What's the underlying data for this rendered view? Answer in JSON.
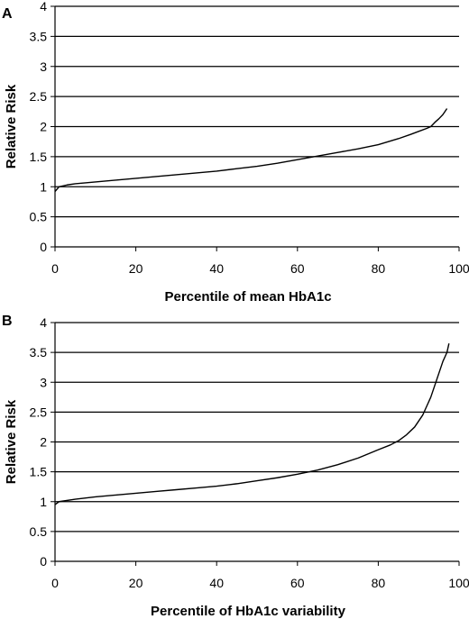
{
  "chart_data": [
    {
      "type": "line",
      "panel_label": "A",
      "xlabel": "Percentile of mean HbA1c",
      "ylabel": "Relative Risk",
      "xlim": [
        0,
        100
      ],
      "ylim": [
        0,
        4
      ],
      "x_ticks": [
        "0",
        "20",
        "40",
        "60",
        "80",
        "100"
      ],
      "y_ticks": [
        "0",
        "0.5",
        "1",
        "1.5",
        "2",
        "2.5",
        "3",
        "3.5",
        "4"
      ],
      "grid": "horizontal",
      "x": [
        0,
        1,
        3,
        5,
        10,
        15,
        20,
        25,
        30,
        35,
        40,
        45,
        50,
        55,
        60,
        65,
        70,
        75,
        80,
        85,
        88,
        90,
        92,
        93,
        94,
        95,
        96,
        97
      ],
      "y": [
        0.92,
        1.0,
        1.03,
        1.05,
        1.08,
        1.11,
        1.14,
        1.17,
        1.2,
        1.23,
        1.26,
        1.3,
        1.34,
        1.39,
        1.45,
        1.51,
        1.57,
        1.63,
        1.7,
        1.8,
        1.87,
        1.92,
        1.97,
        2.0,
        2.07,
        2.13,
        2.2,
        2.3
      ]
    },
    {
      "type": "line",
      "panel_label": "B",
      "xlabel": "Percentile of HbA1c variability",
      "ylabel": "Relative Risk",
      "xlim": [
        0,
        100
      ],
      "ylim": [
        0,
        4
      ],
      "x_ticks": [
        "0",
        "20",
        "40",
        "60",
        "80",
        "100"
      ],
      "y_ticks": [
        "0",
        "0.5",
        "1",
        "1.5",
        "2",
        "2.5",
        "3",
        "3.5",
        "4"
      ],
      "grid": "horizontal",
      "x": [
        0,
        1,
        5,
        10,
        15,
        20,
        25,
        30,
        35,
        40,
        45,
        50,
        55,
        60,
        65,
        70,
        75,
        80,
        83,
        85,
        87,
        89,
        90,
        91,
        92,
        93,
        94,
        95,
        96,
        97,
        97.5
      ],
      "y": [
        0.95,
        1.0,
        1.04,
        1.08,
        1.11,
        1.14,
        1.17,
        1.2,
        1.23,
        1.26,
        1.3,
        1.35,
        1.4,
        1.46,
        1.53,
        1.62,
        1.73,
        1.87,
        1.95,
        2.02,
        2.12,
        2.25,
        2.35,
        2.45,
        2.6,
        2.75,
        2.95,
        3.15,
        3.35,
        3.5,
        3.65
      ]
    }
  ]
}
